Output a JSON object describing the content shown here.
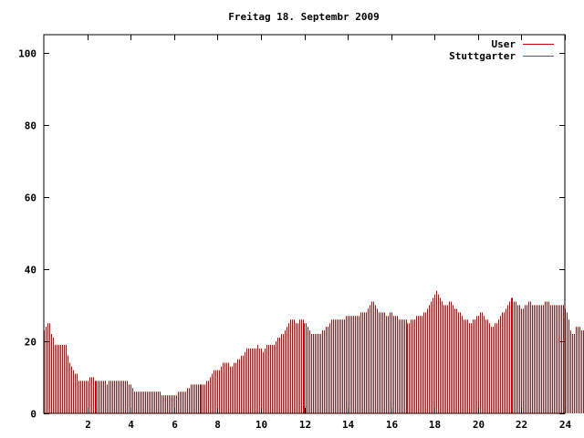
{
  "chart_data": {
    "type": "bar",
    "title": "Freitag 18. Septembr 2009",
    "xlabel": "",
    "ylabel": "",
    "xlim": [
      0,
      24
    ],
    "ylim": [
      0,
      105
    ],
    "x_ticks": [
      2,
      4,
      6,
      8,
      10,
      12,
      14,
      16,
      18,
      20,
      22,
      24
    ],
    "y_ticks": [
      0,
      20,
      40,
      60,
      80,
      100
    ],
    "grid": false,
    "legend_position": "top-right",
    "x_step_hours": 0.08333,
    "series": [
      {
        "name": "User",
        "color": "#cc0000",
        "values": [
          23,
          24,
          25,
          25,
          22,
          21,
          19,
          19,
          19,
          19,
          19,
          19,
          19,
          16,
          14,
          13,
          12,
          11,
          11,
          9,
          9,
          9,
          9,
          9,
          9,
          10,
          10,
          10,
          9,
          9,
          9,
          9,
          9,
          9,
          9,
          8,
          9,
          9,
          9,
          9,
          9,
          9,
          9,
          9,
          9,
          9,
          9,
          8,
          8,
          7,
          6,
          6,
          6,
          6,
          6,
          6,
          6,
          6,
          6,
          6,
          6,
          6,
          6,
          6,
          6,
          5,
          5,
          5,
          5,
          5,
          5,
          5,
          5,
          5,
          6,
          6,
          6,
          6,
          6,
          7,
          7,
          8,
          8,
          8,
          8,
          8,
          8,
          8,
          8,
          8,
          9,
          9,
          10,
          11,
          12,
          12,
          12,
          12,
          13,
          14,
          14,
          14,
          14,
          13,
          13,
          14,
          14,
          15,
          15,
          16,
          16,
          17,
          18,
          18,
          18,
          18,
          18,
          18,
          19,
          18,
          18,
          17,
          18,
          19,
          19,
          19,
          19,
          19,
          20,
          21,
          21,
          22,
          22,
          23,
          24,
          25,
          26,
          26,
          26,
          25,
          25,
          26,
          26,
          26,
          25,
          25,
          24,
          23,
          22,
          22,
          22,
          22,
          22,
          22,
          23,
          23,
          24,
          24,
          25,
          26,
          26,
          26,
          26,
          26,
          26,
          26,
          26,
          27,
          27,
          27,
          27,
          27,
          27,
          27,
          27,
          28,
          28,
          28,
          28,
          29,
          30,
          31,
          31,
          30,
          29,
          28,
          28,
          28,
          28,
          27,
          27,
          28,
          28,
          27,
          27,
          27,
          26,
          26,
          26,
          26,
          26,
          25,
          25,
          26,
          26,
          26,
          27,
          27,
          27,
          27,
          28,
          28,
          29,
          30,
          31,
          32,
          33,
          34,
          33,
          32,
          31,
          30,
          30,
          30,
          31,
          31,
          30,
          29,
          29,
          28,
          28,
          27,
          26,
          26,
          26,
          25,
          25,
          26,
          26,
          27,
          27,
          28,
          28,
          27,
          26,
          26,
          25,
          24,
          24,
          25,
          25,
          26,
          27,
          28,
          28,
          29,
          30,
          31,
          32,
          32,
          31,
          31,
          30,
          30,
          29,
          29,
          30,
          30,
          31,
          31,
          30,
          30,
          30,
          30,
          30,
          30,
          30,
          31,
          31,
          31,
          30,
          30,
          30,
          30,
          30,
          30,
          30,
          30,
          29,
          28,
          26,
          23,
          22,
          22,
          24,
          24,
          24,
          23,
          23,
          22,
          21,
          21
        ]
      },
      {
        "name": "Stuttgarter",
        "color": "#008080",
        "values": []
      }
    ]
  }
}
